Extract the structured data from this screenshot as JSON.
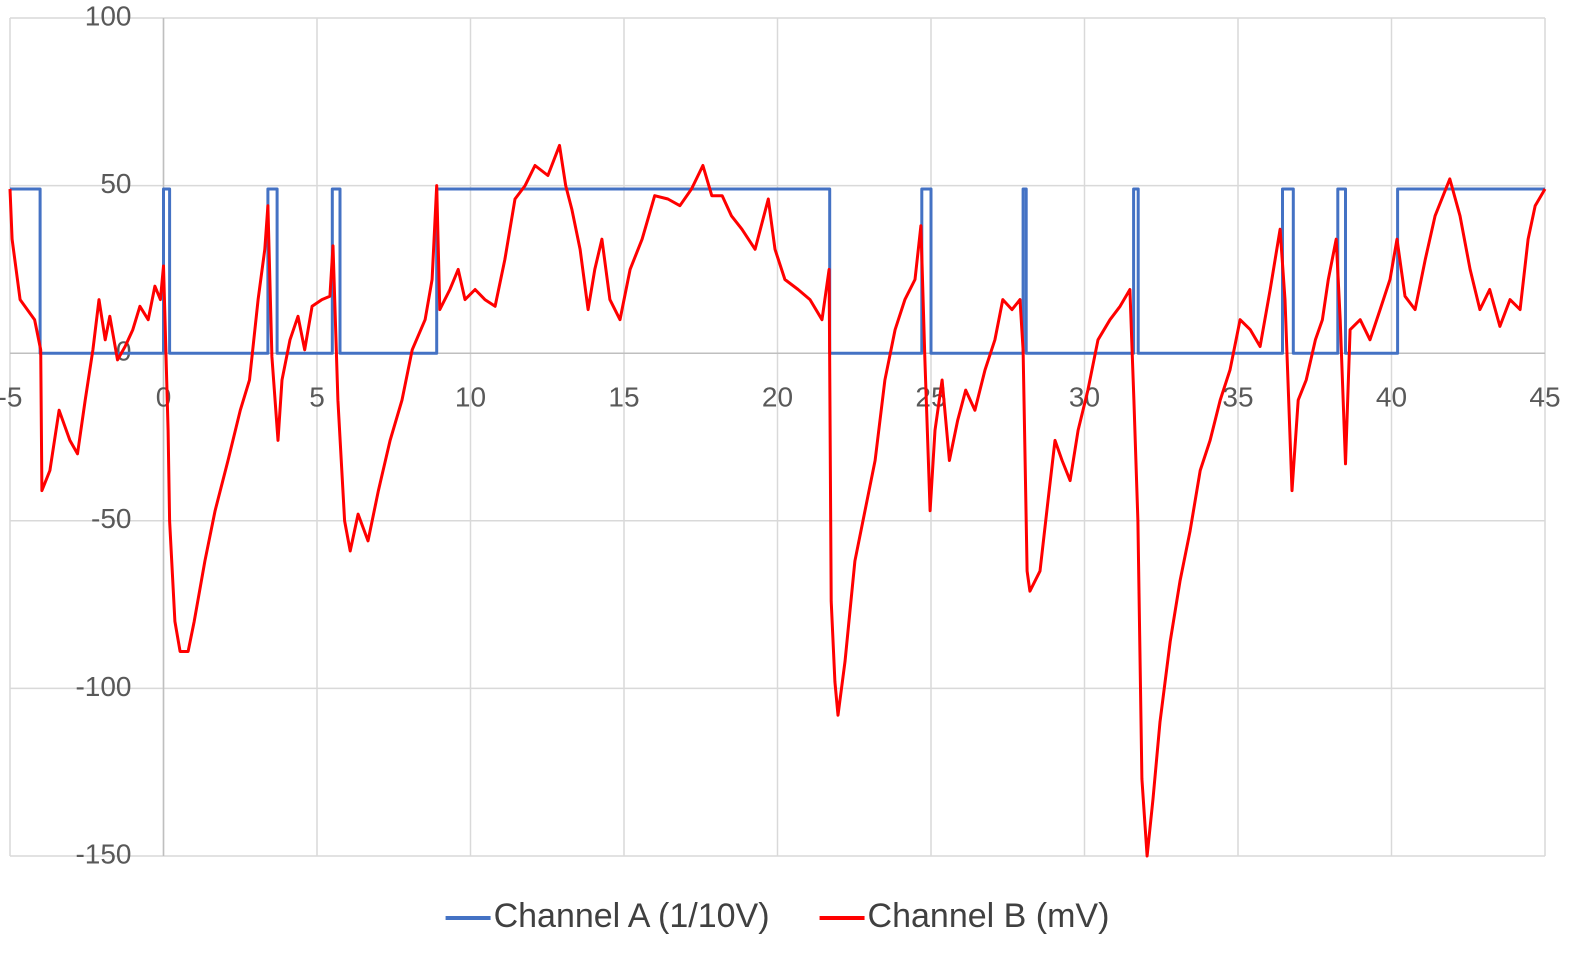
{
  "chart_data": {
    "type": "line",
    "xlim": [
      -5,
      45
    ],
    "xticks": [
      -5,
      0,
      5,
      10,
      15,
      20,
      25,
      30,
      35,
      40,
      45
    ],
    "ylim": [
      -150,
      100
    ],
    "yticks": [
      -150,
      -100,
      -50,
      0,
      50,
      100
    ],
    "grid": true,
    "legend": "bottom",
    "series": [
      {
        "name": "Channel A (1/10V)",
        "color": "#4472c4",
        "x": [
          -5,
          -4.02,
          -4.02,
          0,
          0,
          0.2,
          0.2,
          3.4,
          3.4,
          3.7,
          3.7,
          5.5,
          5.5,
          5.75,
          5.75,
          8.9,
          8.9,
          21.7,
          21.7,
          24.7,
          24.7,
          25,
          25,
          28,
          28,
          28.1,
          28.1,
          31.6,
          31.6,
          31.75,
          31.75,
          36.45,
          36.45,
          36.8,
          36.8,
          38.25,
          38.25,
          38.5,
          38.5,
          40.2,
          40.2,
          45
        ],
        "values": [
          49,
          49,
          0,
          0,
          49,
          49,
          0,
          0,
          49,
          49,
          0,
          0,
          49,
          49,
          0,
          0,
          49,
          49,
          0,
          0,
          49,
          49,
          0,
          0,
          49,
          49,
          0,
          0,
          49,
          49,
          0,
          0,
          49,
          49,
          0,
          0,
          49,
          49,
          0,
          0,
          49,
          49
        ]
      },
      {
        "name": "Channel B (mV)",
        "color": "#ff0000",
        "x": [
          -5,
          -4.93,
          -4.67,
          -4.2,
          -4.0,
          -3.96,
          -3.7,
          -3.4,
          -3.05,
          -2.8,
          -2.55,
          -2.3,
          -2.1,
          -1.9,
          -1.75,
          -1.5,
          -1.25,
          -1.0,
          -0.77,
          -0.5,
          -0.28,
          -0.1,
          0,
          0.15,
          0.2,
          0.37,
          0.54,
          0.8,
          1.0,
          1.35,
          1.68,
          2.1,
          2.5,
          2.8,
          3.08,
          3.3,
          3.4,
          3.53,
          3.73,
          3.86,
          4.12,
          4.38,
          4.6,
          4.84,
          5.16,
          5.42,
          5.52,
          5.68,
          5.9,
          6.08,
          6.34,
          6.66,
          7.0,
          7.38,
          7.77,
          8.1,
          8.52,
          8.75,
          8.9,
          9.0,
          9.33,
          9.6,
          9.82,
          10.15,
          10.47,
          10.8,
          11.12,
          11.45,
          11.78,
          12.1,
          12.52,
          12.9,
          13.1,
          13.3,
          13.57,
          13.83,
          14.05,
          14.28,
          14.54,
          14.87,
          15.2,
          15.59,
          16.0,
          16.43,
          16.82,
          17.2,
          17.57,
          17.86,
          18.2,
          18.5,
          18.84,
          19.27,
          19.7,
          19.92,
          20.24,
          20.67,
          21.06,
          21.45,
          21.68,
          21.75,
          21.87,
          21.97,
          22.2,
          22.52,
          22.85,
          23.18,
          23.5,
          23.83,
          24.15,
          24.48,
          24.67,
          24.8,
          24.97,
          25.13,
          25.36,
          25.6,
          25.87,
          26.13,
          26.43,
          26.76,
          27.08,
          27.34,
          27.64,
          27.9,
          28.0,
          28.13,
          28.22,
          28.55,
          28.81,
          29.04,
          29.27,
          29.53,
          29.79,
          30.11,
          30.44,
          30.83,
          31.16,
          31.48,
          31.61,
          31.74,
          31.87,
          32.04,
          32.23,
          32.46,
          32.79,
          33.11,
          33.44,
          33.77,
          34.09,
          34.42,
          34.74,
          35.07,
          35.4,
          35.72,
          36.05,
          36.37,
          36.53,
          36.76,
          36.96,
          37.22,
          37.52,
          37.75,
          37.94,
          38.2,
          38.33,
          38.5,
          38.65,
          38.98,
          39.3,
          39.63,
          39.95,
          40.18,
          40.44,
          40.77,
          41.1,
          41.42,
          41.9,
          42.23,
          42.56,
          42.88,
          43.2,
          43.53,
          43.86,
          44.19,
          44.45,
          44.68,
          45.0
        ],
        "values": [
          49,
          34,
          16,
          10,
          1,
          -41,
          -35,
          -17,
          -26,
          -30,
          -14,
          1,
          16,
          4,
          11,
          -2,
          2,
          7,
          14,
          10,
          20,
          16,
          26,
          -23,
          -50,
          -80,
          -89,
          -89,
          -80,
          -62,
          -47,
          -32,
          -17,
          -8,
          16,
          31,
          44,
          -1,
          -26,
          -8,
          4,
          11,
          1,
          14,
          16,
          17,
          32,
          -14,
          -50,
          -59,
          -48,
          -56,
          -41,
          -26,
          -14,
          1,
          10,
          22,
          50,
          13,
          19,
          25,
          16,
          19,
          16,
          14,
          28,
          46,
          50,
          56,
          53,
          62,
          50,
          43,
          31,
          13,
          25,
          34,
          16,
          10,
          25,
          34,
          47,
          46,
          44,
          49,
          56,
          47,
          47,
          41,
          37,
          31,
          46,
          31,
          22,
          19,
          16,
          10,
          25,
          -74,
          -98,
          -108,
          -92,
          -62,
          -47,
          -32,
          -8,
          7,
          16,
          22,
          38,
          -2,
          -47,
          -23,
          -8,
          -32,
          -20,
          -11,
          -17,
          -5,
          4,
          16,
          13,
          16,
          1,
          -65,
          -71,
          -65,
          -44,
          -26,
          -32,
          -38,
          -23,
          -11,
          4,
          10,
          14,
          19,
          -14,
          -50,
          -127,
          -150,
          -133,
          -110,
          -86,
          -68,
          -53,
          -35,
          -26,
          -14,
          -5,
          10,
          7,
          2,
          19,
          37,
          16,
          -41,
          -14,
          -8,
          4,
          10,
          22,
          34,
          10,
          -33,
          7,
          10,
          4,
          13,
          22,
          34,
          17,
          13,
          28,
          41,
          52,
          41,
          25,
          13,
          19,
          8,
          16,
          13,
          34,
          44,
          49
        ]
      }
    ]
  }
}
